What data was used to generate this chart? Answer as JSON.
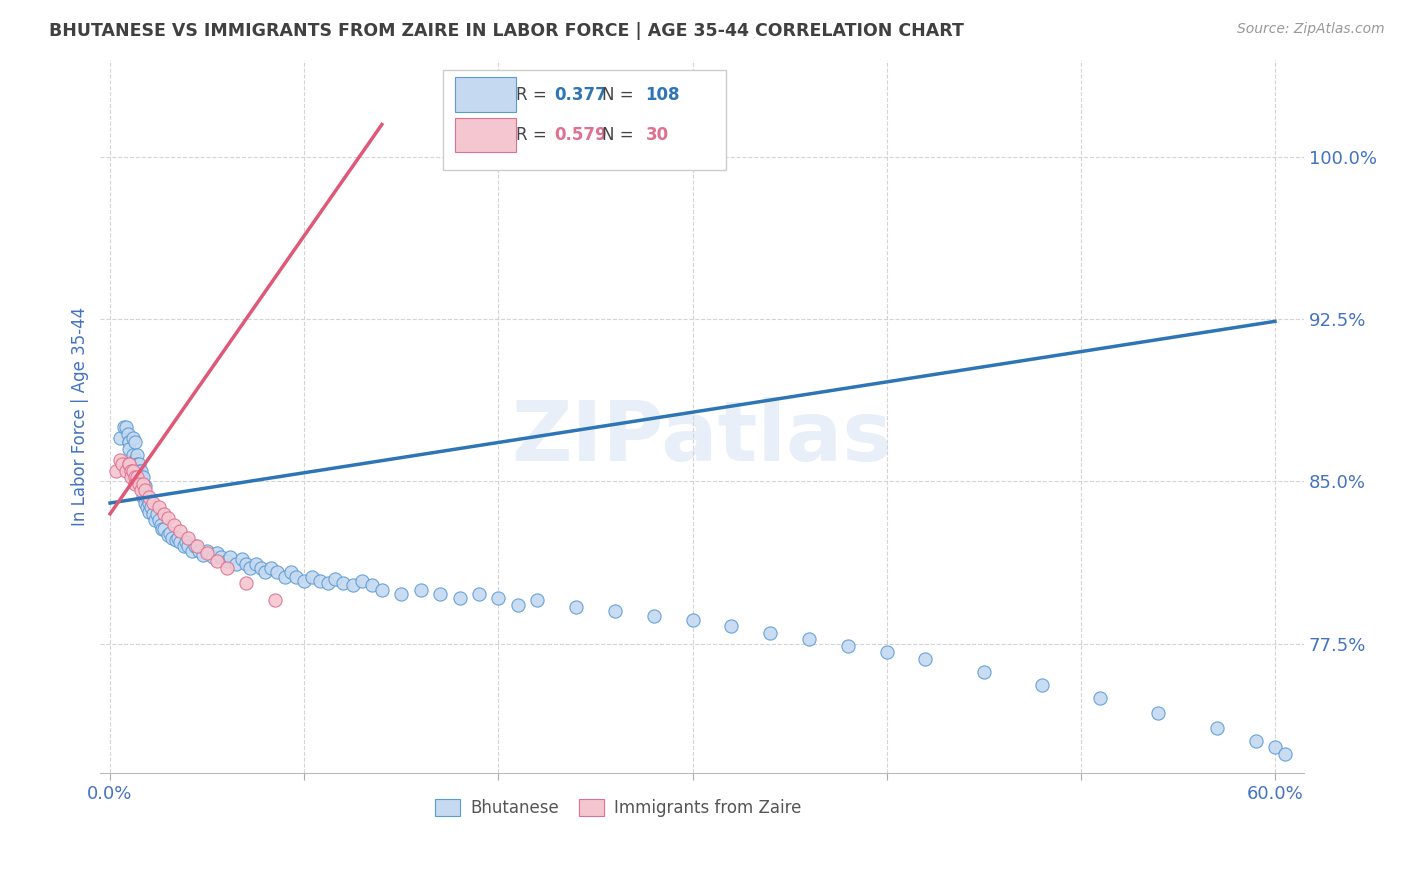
{
  "title": "BHUTANESE VS IMMIGRANTS FROM ZAIRE IN LABOR FORCE | AGE 35-44 CORRELATION CHART",
  "source": "Source: ZipAtlas.com",
  "ylabel": "In Labor Force | Age 35-44",
  "xlim": [
    -0.005,
    0.615
  ],
  "ylim": [
    0.715,
    1.045
  ],
  "yticks": [
    0.775,
    0.85,
    0.925,
    1.0
  ],
  "ytick_labels": [
    "77.5%",
    "85.0%",
    "92.5%",
    "100.0%"
  ],
  "xticks": [
    0.0,
    0.1,
    0.2,
    0.3,
    0.4,
    0.5,
    0.6
  ],
  "xtick_labels": [
    "0.0%",
    "",
    "",
    "",
    "",
    "",
    "60.0%"
  ],
  "blue_R": "0.377",
  "blue_N": "108",
  "pink_R": "0.579",
  "pink_N": "30",
  "blue_fill_color": "#c5d9f0",
  "blue_edge_color": "#5b9bd5",
  "pink_fill_color": "#f4c6d0",
  "pink_edge_color": "#e07090",
  "blue_line_color": "#2e75b6",
  "pink_line_color": "#e05878",
  "axis_color": "#4472c4",
  "title_color": "#404040",
  "watermark_text": "ZIPatlas",
  "blue_scatter_x": [
    0.005,
    0.007,
    0.008,
    0.009,
    0.01,
    0.01,
    0.01,
    0.012,
    0.012,
    0.013,
    0.013,
    0.013,
    0.013,
    0.014,
    0.014,
    0.014,
    0.015,
    0.015,
    0.015,
    0.015,
    0.016,
    0.016,
    0.016,
    0.017,
    0.017,
    0.017,
    0.018,
    0.018,
    0.018,
    0.019,
    0.019,
    0.02,
    0.02,
    0.021,
    0.022,
    0.023,
    0.024,
    0.025,
    0.026,
    0.027,
    0.028,
    0.03,
    0.031,
    0.032,
    0.034,
    0.035,
    0.036,
    0.038,
    0.039,
    0.04,
    0.042,
    0.044,
    0.046,
    0.048,
    0.05,
    0.053,
    0.055,
    0.057,
    0.06,
    0.062,
    0.065,
    0.068,
    0.07,
    0.072,
    0.075,
    0.078,
    0.08,
    0.083,
    0.086,
    0.09,
    0.093,
    0.096,
    0.1,
    0.104,
    0.108,
    0.112,
    0.116,
    0.12,
    0.125,
    0.13,
    0.135,
    0.14,
    0.15,
    0.16,
    0.17,
    0.18,
    0.19,
    0.2,
    0.21,
    0.22,
    0.24,
    0.26,
    0.28,
    0.3,
    0.32,
    0.34,
    0.36,
    0.38,
    0.4,
    0.42,
    0.45,
    0.48,
    0.51,
    0.54,
    0.57,
    0.59,
    0.6,
    0.605
  ],
  "blue_scatter_y": [
    0.87,
    0.875,
    0.875,
    0.872,
    0.868,
    0.868,
    0.865,
    0.87,
    0.862,
    0.868,
    0.86,
    0.858,
    0.855,
    0.862,
    0.858,
    0.855,
    0.858,
    0.855,
    0.852,
    0.85,
    0.855,
    0.852,
    0.848,
    0.852,
    0.848,
    0.843,
    0.848,
    0.843,
    0.84,
    0.843,
    0.838,
    0.84,
    0.836,
    0.838,
    0.835,
    0.832,
    0.835,
    0.832,
    0.83,
    0.828,
    0.828,
    0.825,
    0.826,
    0.824,
    0.823,
    0.824,
    0.822,
    0.82,
    0.822,
    0.82,
    0.818,
    0.82,
    0.818,
    0.816,
    0.818,
    0.815,
    0.817,
    0.815,
    0.813,
    0.815,
    0.812,
    0.814,
    0.812,
    0.81,
    0.812,
    0.81,
    0.808,
    0.81,
    0.808,
    0.806,
    0.808,
    0.806,
    0.804,
    0.806,
    0.804,
    0.803,
    0.805,
    0.803,
    0.802,
    0.804,
    0.802,
    0.8,
    0.798,
    0.8,
    0.798,
    0.796,
    0.798,
    0.796,
    0.793,
    0.795,
    0.792,
    0.79,
    0.788,
    0.786,
    0.783,
    0.78,
    0.777,
    0.774,
    0.771,
    0.768,
    0.762,
    0.756,
    0.75,
    0.743,
    0.736,
    0.73,
    0.727,
    0.724
  ],
  "pink_scatter_x": [
    0.003,
    0.005,
    0.006,
    0.008,
    0.01,
    0.01,
    0.011,
    0.011,
    0.012,
    0.013,
    0.013,
    0.014,
    0.015,
    0.016,
    0.017,
    0.018,
    0.02,
    0.022,
    0.025,
    0.028,
    0.03,
    0.033,
    0.036,
    0.04,
    0.045,
    0.05,
    0.055,
    0.06,
    0.07,
    0.085
  ],
  "pink_scatter_y": [
    0.855,
    0.86,
    0.858,
    0.855,
    0.858,
    0.858,
    0.855,
    0.852,
    0.855,
    0.852,
    0.849,
    0.852,
    0.849,
    0.846,
    0.849,
    0.846,
    0.843,
    0.84,
    0.838,
    0.835,
    0.833,
    0.83,
    0.827,
    0.824,
    0.82,
    0.817,
    0.813,
    0.81,
    0.803,
    0.795
  ],
  "blue_trend_x": [
    0.0,
    0.6
  ],
  "blue_trend_y": [
    0.84,
    0.924
  ],
  "pink_trend_x": [
    0.0,
    0.14
  ],
  "pink_trend_y": [
    0.835,
    1.015
  ],
  "background_color": "#ffffff",
  "grid_color": "#d0d0d0",
  "marker_size": 90,
  "marker_edge_width": 0.8
}
